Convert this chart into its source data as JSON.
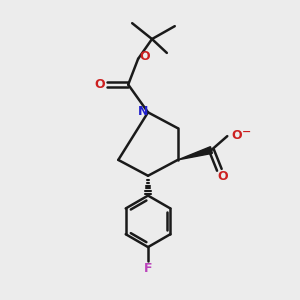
{
  "bg_color": "#ececec",
  "line_color": "#1a1a1a",
  "N_color": "#2020cc",
  "O_color": "#cc2020",
  "F_color": "#bb44bb",
  "line_width": 1.8,
  "fig_size": [
    3.0,
    3.0
  ],
  "dpi": 100,
  "xlim": [
    0,
    300
  ],
  "ylim": [
    0,
    300
  ]
}
